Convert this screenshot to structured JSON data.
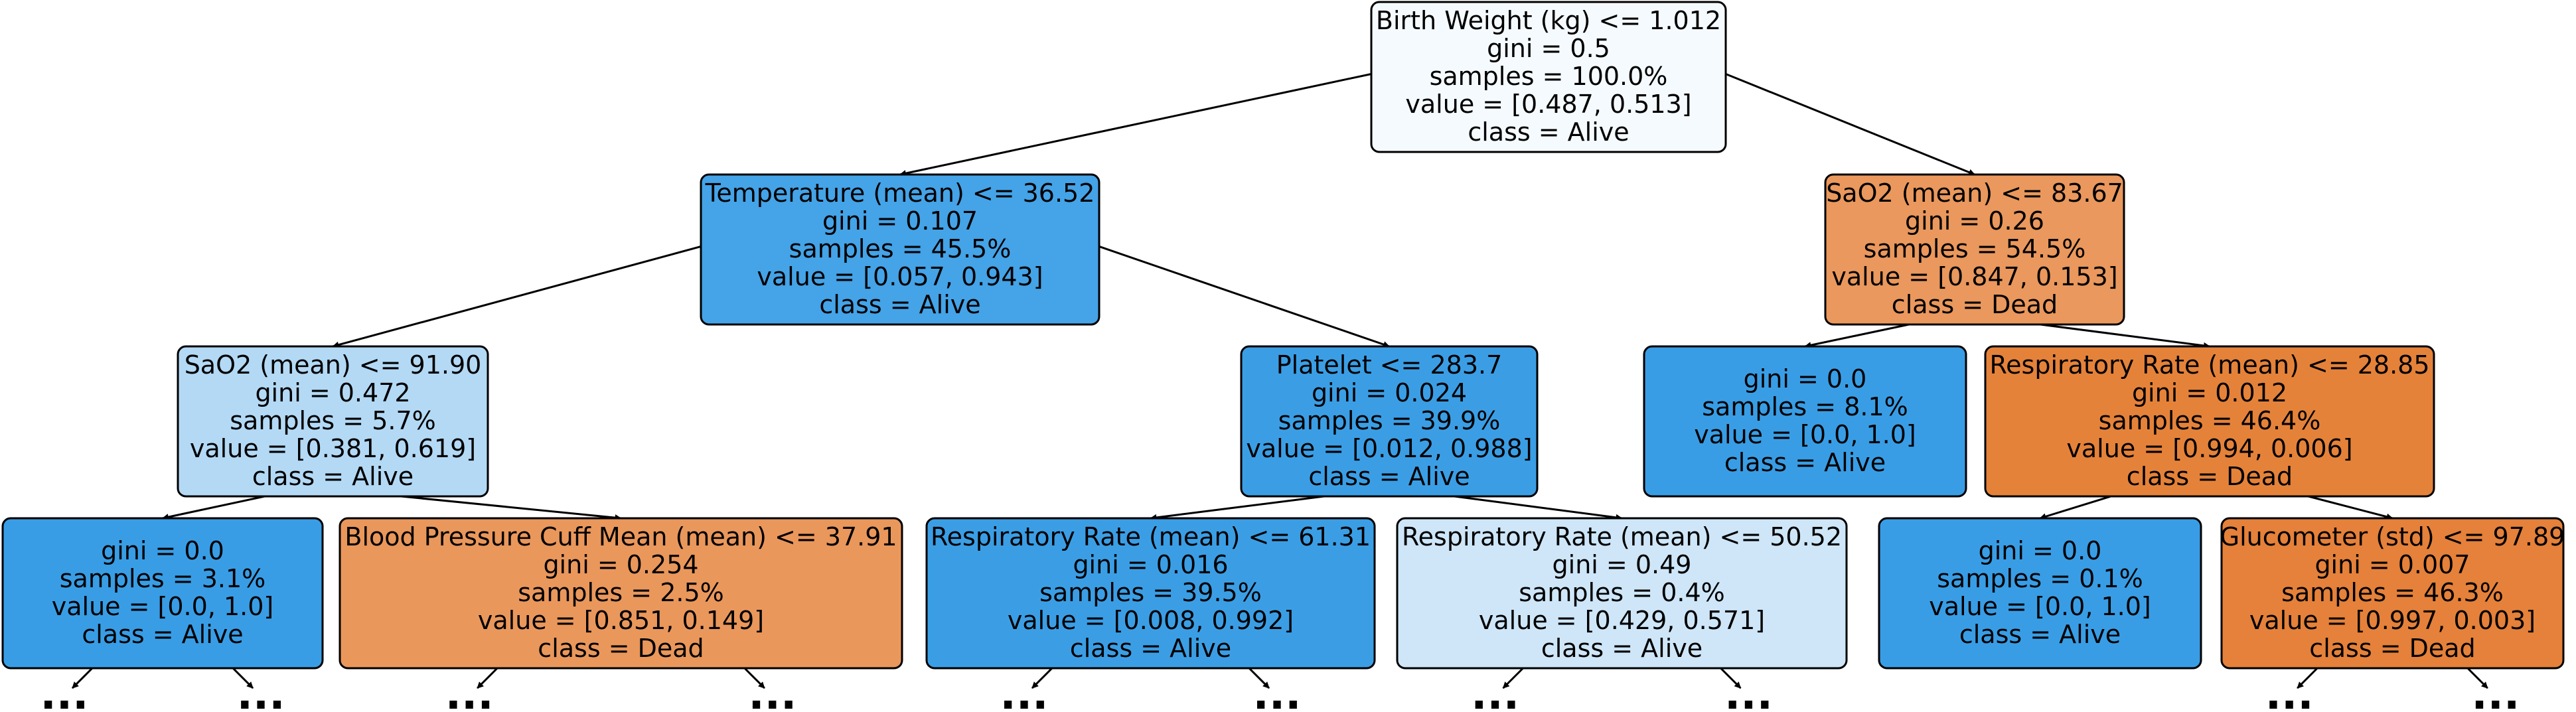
{
  "tree": {
    "nodes": [
      {
        "id": "n0",
        "condition": "Birth Weight (kg) <= 1.012",
        "gini": "gini = 0.5",
        "samples": "samples = 100.0%",
        "value": "value = [0.487, 0.513]",
        "class": "class = Alive",
        "fill": "#f5fafe"
      },
      {
        "id": "n1",
        "condition": "Temperature (mean) <= 36.52",
        "gini": "gini = 0.107",
        "samples": "samples = 45.5%",
        "value": "value = [0.057, 0.943]",
        "class": "class = Alive",
        "fill": "#45a3e7"
      },
      {
        "id": "n2",
        "condition": "SaO2 (mean) <= 83.67",
        "gini": "gini = 0.26",
        "samples": "samples = 54.5%",
        "value": "value = [0.847, 0.153]",
        "class": "class = Dead",
        "fill": "#ea985d"
      },
      {
        "id": "n3",
        "condition": "SaO2 (mean) <= 91.90",
        "gini": "gini = 0.472",
        "samples": "samples = 5.7%",
        "value": "value = [0.381, 0.619]",
        "class": "class = Alive",
        "fill": "#b3d9f5"
      },
      {
        "id": "n4",
        "condition": "Platelet <= 283.7",
        "gini": "gini = 0.024",
        "samples": "samples = 39.9%",
        "value": "value = [0.012, 0.988]",
        "class": "class = Alive",
        "fill": "#3b9ee5"
      },
      {
        "id": "n5",
        "condition": "",
        "gini": "gini = 0.0",
        "samples": "samples = 8.1%",
        "value": "value = [0.0, 1.0]",
        "class": "class = Alive",
        "fill": "#399de5"
      },
      {
        "id": "n6",
        "condition": "Respiratory Rate (mean) <= 28.85",
        "gini": "gini = 0.012",
        "samples": "samples = 46.4%",
        "value": "value = [0.994, 0.006]",
        "class": "class = Dead",
        "fill": "#e5823a"
      },
      {
        "id": "n7",
        "condition": "",
        "gini": "gini = 0.0",
        "samples": "samples = 3.1%",
        "value": "value = [0.0, 1.0]",
        "class": "class = Alive",
        "fill": "#399de5"
      },
      {
        "id": "n8",
        "condition": "Blood Pressure Cuff Mean (mean) <= 37.91",
        "gini": "gini = 0.254",
        "samples": "samples = 2.5%",
        "value": "value = [0.851, 0.149]",
        "class": "class = Dead",
        "fill": "#ea975c"
      },
      {
        "id": "n9",
        "condition": "Respiratory Rate (mean) <= 61.31",
        "gini": "gini = 0.016",
        "samples": "samples = 39.5%",
        "value": "value = [0.008, 0.992]",
        "class": "class = Alive",
        "fill": "#3b9ee5"
      },
      {
        "id": "n10",
        "condition": "Respiratory Rate (mean) <= 50.52",
        "gini": "gini = 0.49",
        "samples": "samples = 0.4%",
        "value": "value = [0.429, 0.571]",
        "class": "class = Alive",
        "fill": "#cee6f8"
      },
      {
        "id": "n11",
        "condition": "",
        "gini": "gini = 0.0",
        "samples": "samples = 0.1%",
        "value": "value = [0.0, 1.0]",
        "class": "class = Alive",
        "fill": "#399de5"
      },
      {
        "id": "n12",
        "condition": "Glucometer (std) <= 97.89",
        "gini": "gini = 0.007",
        "samples": "samples = 46.3%",
        "value": "value = [0.997, 0.003]",
        "class": "class = Dead",
        "fill": "#e5813a"
      }
    ],
    "edges": [
      [
        "n0",
        "n1"
      ],
      [
        "n0",
        "n2"
      ],
      [
        "n1",
        "n3"
      ],
      [
        "n1",
        "n4"
      ],
      [
        "n2",
        "n5"
      ],
      [
        "n2",
        "n6"
      ],
      [
        "n3",
        "n7"
      ],
      [
        "n3",
        "n8"
      ],
      [
        "n4",
        "n9"
      ],
      [
        "n4",
        "n10"
      ],
      [
        "n6",
        "n11"
      ],
      [
        "n6",
        "n12"
      ]
    ],
    "truncated_parents": [
      "n7",
      "n8",
      "n9",
      "n10",
      "n12"
    ],
    "ellipsis": "..."
  }
}
